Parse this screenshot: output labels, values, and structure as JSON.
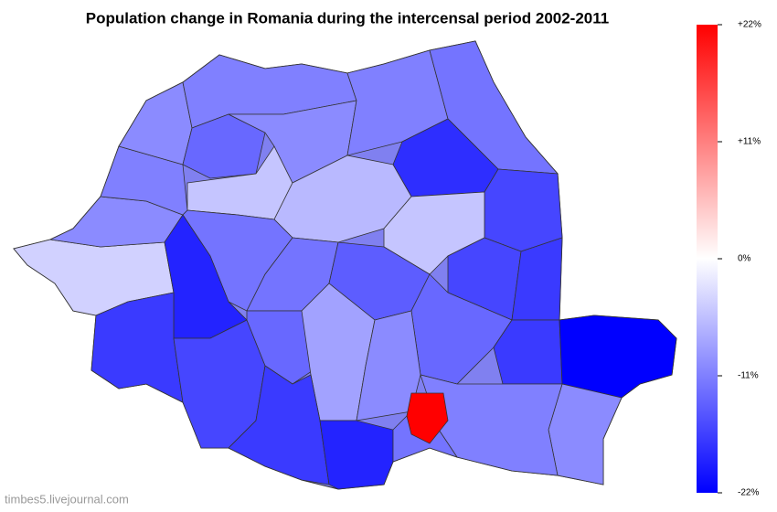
{
  "title": "Population change in Romania during the intercensal period 2002-2011",
  "colorbar": {
    "lim": [
      -22,
      22
    ],
    "low": "#0000ff",
    "mid": "#ffffff",
    "high": "#ff0000",
    "ticks": [
      {
        "value": 22,
        "label": "+22%"
      },
      {
        "value": 11,
        "label": "+11%"
      },
      {
        "value": 0,
        "label": "0%"
      },
      {
        "value": -11,
        "label": "-11%"
      },
      {
        "value": -22,
        "label": "-22%"
      }
    ]
  },
  "regions": [
    -4,
    -10,
    -11,
    -10,
    -11,
    -13,
    -5,
    -10,
    -11,
    -12,
    -18,
    -16,
    -6,
    -5,
    -16,
    -17,
    -12,
    -19,
    -17,
    -12,
    -14,
    -13,
    -17,
    -22,
    -10,
    -11,
    -16,
    -13,
    -8,
    -10,
    -17,
    -19,
    -12,
    22
  ],
  "watermark": "timbes5.livejournal.com"
}
